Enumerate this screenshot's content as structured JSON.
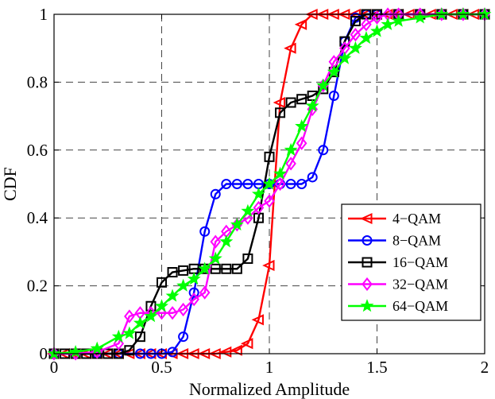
{
  "chart_data": {
    "type": "line",
    "title": "",
    "xlabel": "Normalized Amplitude",
    "ylabel": "CDF",
    "xlim": [
      0,
      2
    ],
    "ylim": [
      0,
      1
    ],
    "xticks": [
      0,
      0.5,
      1,
      1.5,
      2
    ],
    "xtick_labels": [
      "0",
      "0.5",
      "1",
      "1.5",
      "2"
    ],
    "yticks": [
      0,
      0.2,
      0.4,
      0.6,
      0.8,
      1
    ],
    "ytick_labels": [
      "0",
      "0.2",
      "0.4",
      "0.6",
      "0.8",
      "1"
    ],
    "grid": true,
    "legend_position": "lower-right",
    "series": [
      {
        "name": "4−QAM",
        "color": "#ff0000",
        "marker": "triangle-left",
        "points": [
          [
            0,
            0
          ],
          [
            0.05,
            0
          ],
          [
            0.1,
            0
          ],
          [
            0.15,
            0
          ],
          [
            0.2,
            0
          ],
          [
            0.25,
            0
          ],
          [
            0.3,
            0
          ],
          [
            0.35,
            0
          ],
          [
            0.4,
            0
          ],
          [
            0.45,
            0
          ],
          [
            0.5,
            0
          ],
          [
            0.55,
            0
          ],
          [
            0.6,
            0
          ],
          [
            0.65,
            0
          ],
          [
            0.7,
            0
          ],
          [
            0.75,
            0
          ],
          [
            0.8,
            0.005
          ],
          [
            0.85,
            0.01
          ],
          [
            0.9,
            0.03
          ],
          [
            0.95,
            0.1
          ],
          [
            1.0,
            0.26
          ],
          [
            1.05,
            0.74
          ],
          [
            1.1,
            0.9
          ],
          [
            1.15,
            0.97
          ],
          [
            1.2,
            1
          ],
          [
            1.25,
            1
          ],
          [
            1.3,
            1
          ],
          [
            1.35,
            1
          ],
          [
            1.4,
            1
          ],
          [
            1.45,
            1
          ],
          [
            1.5,
            1
          ],
          [
            1.55,
            1
          ],
          [
            1.6,
            1
          ],
          [
            1.65,
            1
          ],
          [
            1.7,
            1
          ],
          [
            1.75,
            1
          ],
          [
            1.8,
            1
          ],
          [
            1.85,
            1
          ],
          [
            1.9,
            1
          ],
          [
            1.95,
            1
          ],
          [
            2.0,
            1
          ]
        ]
      },
      {
        "name": "8−QAM",
        "color": "#0000ff",
        "marker": "circle",
        "points": [
          [
            0,
            0
          ],
          [
            0.1,
            0
          ],
          [
            0.2,
            0
          ],
          [
            0.3,
            0
          ],
          [
            0.4,
            0
          ],
          [
            0.45,
            0
          ],
          [
            0.5,
            0
          ],
          [
            0.55,
            0.005
          ],
          [
            0.6,
            0.05
          ],
          [
            0.65,
            0.18
          ],
          [
            0.7,
            0.36
          ],
          [
            0.75,
            0.47
          ],
          [
            0.8,
            0.5
          ],
          [
            0.85,
            0.5
          ],
          [
            0.9,
            0.5
          ],
          [
            0.95,
            0.5
          ],
          [
            1.0,
            0.5
          ],
          [
            1.05,
            0.5
          ],
          [
            1.1,
            0.5
          ],
          [
            1.15,
            0.5
          ],
          [
            1.2,
            0.52
          ],
          [
            1.25,
            0.6
          ],
          [
            1.3,
            0.76
          ],
          [
            1.35,
            0.92
          ],
          [
            1.4,
            0.99
          ],
          [
            1.45,
            1
          ],
          [
            1.5,
            1
          ],
          [
            1.6,
            1
          ],
          [
            1.7,
            1
          ],
          [
            1.8,
            1
          ],
          [
            1.9,
            1
          ],
          [
            2.0,
            1
          ]
        ]
      },
      {
        "name": "16−QAM",
        "color": "#000000",
        "marker": "square",
        "points": [
          [
            0,
            0
          ],
          [
            0.05,
            0
          ],
          [
            0.1,
            0
          ],
          [
            0.15,
            0
          ],
          [
            0.2,
            0
          ],
          [
            0.25,
            0
          ],
          [
            0.3,
            0
          ],
          [
            0.35,
            0.01
          ],
          [
            0.4,
            0.05
          ],
          [
            0.45,
            0.14
          ],
          [
            0.5,
            0.21
          ],
          [
            0.55,
            0.24
          ],
          [
            0.6,
            0.245
          ],
          [
            0.65,
            0.25
          ],
          [
            0.7,
            0.25
          ],
          [
            0.75,
            0.25
          ],
          [
            0.8,
            0.25
          ],
          [
            0.85,
            0.25
          ],
          [
            0.9,
            0.28
          ],
          [
            0.95,
            0.4
          ],
          [
            1.0,
            0.58
          ],
          [
            1.05,
            0.71
          ],
          [
            1.1,
            0.74
          ],
          [
            1.15,
            0.75
          ],
          [
            1.2,
            0.76
          ],
          [
            1.25,
            0.78
          ],
          [
            1.3,
            0.83
          ],
          [
            1.35,
            0.92
          ],
          [
            1.4,
            0.98
          ],
          [
            1.45,
            1
          ],
          [
            1.5,
            1
          ],
          [
            1.6,
            1
          ],
          [
            1.7,
            1
          ],
          [
            1.8,
            1
          ],
          [
            1.9,
            1
          ],
          [
            2.0,
            1
          ]
        ]
      },
      {
        "name": "32−QAM",
        "color": "#ff00ff",
        "marker": "diamond",
        "points": [
          [
            0,
            0
          ],
          [
            0.1,
            0
          ],
          [
            0.2,
            0.005
          ],
          [
            0.3,
            0.03
          ],
          [
            0.35,
            0.11
          ],
          [
            0.4,
            0.12
          ],
          [
            0.45,
            0.12
          ],
          [
            0.5,
            0.12
          ],
          [
            0.55,
            0.12
          ],
          [
            0.6,
            0.13
          ],
          [
            0.65,
            0.16
          ],
          [
            0.7,
            0.18
          ],
          [
            0.75,
            0.33
          ],
          [
            0.8,
            0.36
          ],
          [
            0.85,
            0.38
          ],
          [
            0.9,
            0.4
          ],
          [
            0.95,
            0.43
          ],
          [
            1.0,
            0.45
          ],
          [
            1.05,
            0.5
          ],
          [
            1.1,
            0.56
          ],
          [
            1.15,
            0.62
          ],
          [
            1.2,
            0.72
          ],
          [
            1.25,
            0.79
          ],
          [
            1.3,
            0.86
          ],
          [
            1.35,
            0.9
          ],
          [
            1.4,
            0.94
          ],
          [
            1.45,
            0.97
          ],
          [
            1.5,
            0.99
          ],
          [
            1.55,
            1
          ],
          [
            1.6,
            1
          ],
          [
            1.7,
            1
          ],
          [
            1.8,
            1
          ],
          [
            1.9,
            1
          ],
          [
            2.0,
            1
          ]
        ]
      },
      {
        "name": "64−QAM",
        "color": "#00ff00",
        "marker": "star",
        "points": [
          [
            0,
            0
          ],
          [
            0.1,
            0.005
          ],
          [
            0.2,
            0.015
          ],
          [
            0.3,
            0.05
          ],
          [
            0.35,
            0.06
          ],
          [
            0.4,
            0.09
          ],
          [
            0.45,
            0.11
          ],
          [
            0.5,
            0.14
          ],
          [
            0.55,
            0.17
          ],
          [
            0.6,
            0.2
          ],
          [
            0.65,
            0.22
          ],
          [
            0.7,
            0.25
          ],
          [
            0.75,
            0.28
          ],
          [
            0.8,
            0.33
          ],
          [
            0.85,
            0.38
          ],
          [
            0.9,
            0.42
          ],
          [
            0.95,
            0.47
          ],
          [
            1.0,
            0.5
          ],
          [
            1.05,
            0.53
          ],
          [
            1.1,
            0.6
          ],
          [
            1.15,
            0.67
          ],
          [
            1.2,
            0.73
          ],
          [
            1.25,
            0.79
          ],
          [
            1.3,
            0.83
          ],
          [
            1.35,
            0.87
          ],
          [
            1.4,
            0.9
          ],
          [
            1.45,
            0.93
          ],
          [
            1.5,
            0.95
          ],
          [
            1.55,
            0.97
          ],
          [
            1.6,
            0.98
          ],
          [
            1.7,
            0.99
          ],
          [
            1.8,
            1
          ],
          [
            1.9,
            1
          ],
          [
            2.0,
            1
          ]
        ]
      }
    ]
  }
}
